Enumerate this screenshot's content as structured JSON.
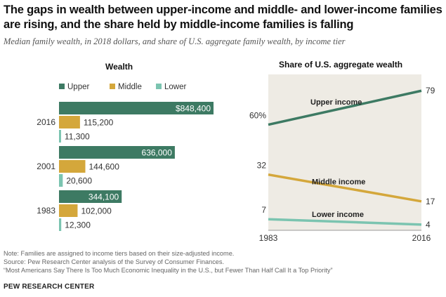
{
  "title": "The gaps in wealth between upper-income and middle- and lower-income families are rising, and the share held by middle-income families is falling",
  "subtitle": "Median family wealth, in 2018 dollars, and share of U.S. aggregate family wealth, by income tier",
  "chart_data": [
    {
      "type": "bar",
      "title": "Wealth",
      "orientation": "horizontal",
      "categories": [
        "2016",
        "2001",
        "1983"
      ],
      "legend_position": "top",
      "series": [
        {
          "name": "Upper",
          "color": "#3d7a63",
          "values": [
            848400,
            636000,
            344100
          ],
          "labels": [
            "$848,400",
            "636,000",
            "344,100"
          ]
        },
        {
          "name": "Middle",
          "color": "#d4a73b",
          "values": [
            115200,
            144600,
            102000
          ],
          "labels": [
            "115,200",
            "144,600",
            "102,000"
          ]
        },
        {
          "name": "Lower",
          "color": "#7bc4b0",
          "values": [
            11300,
            20600,
            12300
          ],
          "labels": [
            "11,300",
            "20,600",
            "12,300"
          ]
        }
      ]
    },
    {
      "type": "line",
      "title": "Share of U.S. aggregate wealth",
      "x": [
        "1983",
        "2016"
      ],
      "ylim": [
        0,
        85
      ],
      "background": "#eeebe4",
      "series": [
        {
          "name": "Upper income",
          "color": "#3d7a63",
          "values": [
            60,
            79
          ],
          "labels": [
            "60%",
            "79"
          ]
        },
        {
          "name": "Middle income",
          "color": "#d4a73b",
          "values": [
            32,
            17
          ],
          "labels": [
            "32",
            "17"
          ]
        },
        {
          "name": "Lower income",
          "color": "#7bc4b0",
          "values": [
            7,
            4
          ],
          "labels": [
            "7",
            "4"
          ]
        }
      ]
    }
  ],
  "notes": {
    "note": "Note: Families are assigned to income tiers based on their size-adjusted income.",
    "source": "Source: Pew Research Center analysis of the Survey of Consumer Finances.",
    "report": "“Most Americans Say There Is Too Much Economic Inequality in the U.S., but Fewer Than Half Call It a Top Priority”"
  },
  "brand": "PEW RESEARCH CENTER"
}
